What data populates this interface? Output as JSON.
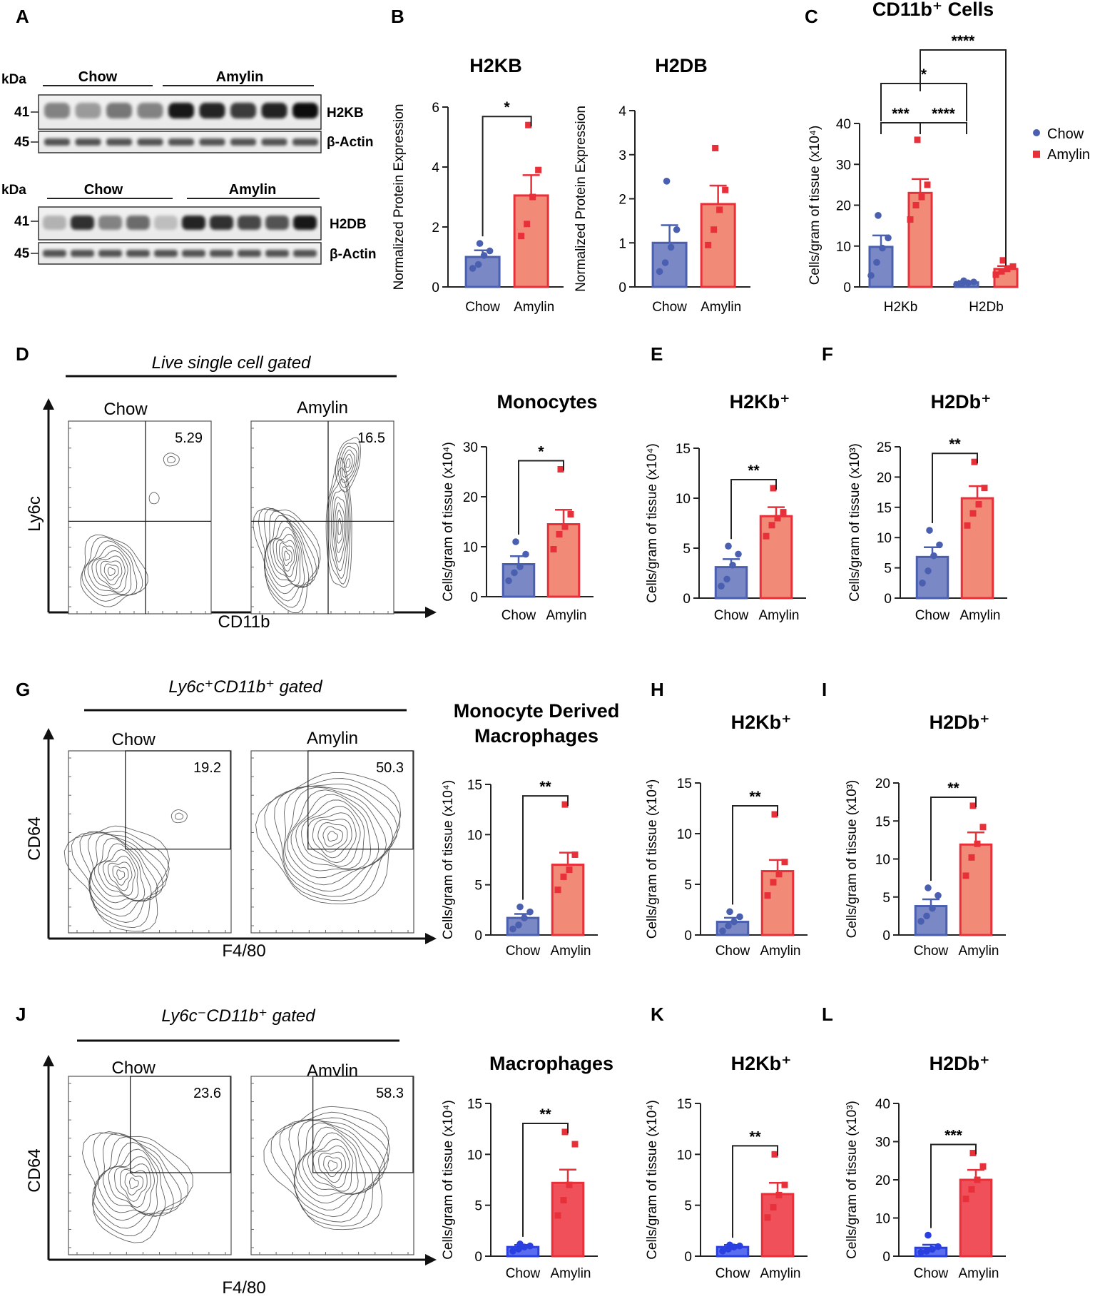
{
  "colors": {
    "chow": "#4a5fb0",
    "chow_fill": "#7b88c6",
    "amylin": "#e8303a",
    "amylin_fill": "#f28a78",
    "bright_blue": "#2a3fe0",
    "bright_red": "#f0505a"
  },
  "panelA": {
    "letter": "A",
    "kda_label": "kDa",
    "blot1": {
      "groups": [
        "Chow",
        "Amylin"
      ],
      "markers": [
        "41",
        "45"
      ],
      "bands": [
        "H2KB",
        "β-Actin"
      ]
    },
    "blot2": {
      "groups": [
        "Chow",
        "Amylin"
      ],
      "markers": [
        "41",
        "45"
      ],
      "bands": [
        "H2DB",
        "β-Actin"
      ]
    }
  },
  "panelB": {
    "letter": "B"
  },
  "panelC": {
    "letter": "C"
  },
  "legend": {
    "chow": "Chow",
    "amylin": "Amylin"
  },
  "flow": [
    {
      "id": "D",
      "letter": "D",
      "gate": "Live single cell gated",
      "xlabel": "CD11b",
      "ylabel": "Ly6c",
      "groups": [
        "Chow",
        "Amylin"
      ],
      "values": [
        "5.29",
        "16.5"
      ]
    },
    {
      "id": "G",
      "letter": "G",
      "gate": "Ly6c⁺CD11b⁺ gated",
      "xlabel": "F4/80",
      "ylabel": "CD64",
      "groups": [
        "Chow",
        "Amylin"
      ],
      "values": [
        "19.2",
        "50.3"
      ]
    },
    {
      "id": "J",
      "letter": "J",
      "gate": "Ly6c⁻CD11b⁺ gated",
      "xlabel": "F4/80",
      "ylabel": "CD64",
      "groups": [
        "Chow",
        "Amylin"
      ],
      "values": [
        "23.6",
        "58.3"
      ]
    }
  ],
  "chart_data": [
    {
      "id": "B1",
      "type": "bar",
      "title": "H2KB",
      "ylabel": "Normalized Protein Expression",
      "categories": [
        "Chow",
        "Amylin"
      ],
      "ylim": [
        0,
        6
      ],
      "yticks": [
        "0",
        "2",
        "4",
        "6"
      ],
      "values": [
        1.0,
        3.05
      ],
      "sem": [
        0.22,
        0.68
      ],
      "points": [
        [
          0.62,
          0.75,
          1.05,
          1.2,
          1.45
        ],
        [
          1.7,
          2.1,
          3.0,
          3.9,
          5.4
        ]
      ],
      "sig": "*",
      "style": "muted"
    },
    {
      "id": "B2",
      "type": "bar",
      "title": "H2DB",
      "ylabel": "Normalized Protein Expression",
      "categories": [
        "Chow",
        "Amylin"
      ],
      "ylim": [
        0,
        4
      ],
      "yticks": [
        "0",
        "1",
        "2",
        "3",
        "4"
      ],
      "values": [
        1.0,
        1.88
      ],
      "sem": [
        0.4,
        0.42
      ],
      "points": [
        [
          0.35,
          0.55,
          0.9,
          1.3,
          2.4
        ],
        [
          0.95,
          1.3,
          1.75,
          2.2,
          3.15
        ]
      ],
      "sig": "",
      "style": "muted"
    },
    {
      "id": "C",
      "type": "bar",
      "title": "CD11b⁺ Cells",
      "ylabel": "Cells/gram of tissue (x10⁴)",
      "categories": [
        "H2Kb",
        "H2Db"
      ],
      "series": [
        {
          "name": "Chow",
          "values": [
            9.8,
            1.1
          ],
          "sem": [
            2.8,
            0.3
          ],
          "points": [
            [
              2.8,
              6.0,
              9.5,
              12.0,
              17.5
            ],
            [
              0.6,
              0.9,
              1.0,
              1.2,
              1.5
            ]
          ]
        },
        {
          "name": "Amylin",
          "values": [
            23.0,
            4.4
          ],
          "sem": [
            3.4,
            0.7
          ],
          "points": [
            [
              16.5,
              20.0,
              22.0,
              25.0,
              36.0
            ],
            [
              3.0,
              3.8,
              4.4,
              5.0,
              6.5
            ]
          ]
        }
      ],
      "ylim": [
        0,
        40
      ],
      "yticks": [
        "0",
        "10",
        "20",
        "30",
        "40"
      ],
      "sig_labels": [
        "***",
        "****",
        "*",
        "****"
      ],
      "style": "muted"
    },
    {
      "id": "Dchart",
      "type": "bar",
      "title": "Monocytes",
      "ylabel": "Cells/gram of tissue (x10⁴)",
      "categories": [
        "Chow",
        "Amylin"
      ],
      "ylim": [
        0,
        30
      ],
      "yticks": [
        "0",
        "10",
        "20",
        "30"
      ],
      "values": [
        6.5,
        14.5
      ],
      "sem": [
        1.6,
        2.9
      ],
      "points": [
        [
          3.2,
          4.8,
          6.0,
          8.5,
          11.0
        ],
        [
          9.5,
          12.5,
          14.0,
          16.5,
          25.5
        ]
      ],
      "sig": "*",
      "style": "muted"
    },
    {
      "id": "E",
      "type": "bar",
      "title": "H2Kb⁺",
      "ylabel": "Cells/gram of tissue (x10⁴)",
      "categories": [
        "Chow",
        "Amylin"
      ],
      "ylim": [
        0,
        15
      ],
      "yticks": [
        "0",
        "5",
        "10",
        "15"
      ],
      "values": [
        3.1,
        8.2
      ],
      "sem": [
        0.8,
        0.9
      ],
      "points": [
        [
          1.2,
          1.9,
          3.3,
          4.4,
          5.2
        ],
        [
          6.2,
          7.3,
          8.0,
          8.6,
          11.0
        ]
      ],
      "sig": "**",
      "style": "muted"
    },
    {
      "id": "F",
      "type": "bar",
      "title": "H2Db⁺",
      "ylabel": "Cells/gram of tissue (x10³)",
      "categories": [
        "Chow",
        "Amylin"
      ],
      "ylim": [
        0,
        25
      ],
      "yticks": [
        "0",
        "5",
        "10",
        "15",
        "20",
        "25"
      ],
      "values": [
        6.8,
        16.5
      ],
      "sem": [
        1.6,
        2.0
      ],
      "points": [
        [
          2.5,
          4.5,
          7.0,
          8.8,
          11.2
        ],
        [
          12.0,
          14.0,
          15.5,
          18.2,
          22.5
        ]
      ],
      "sig": "**",
      "style": "muted"
    },
    {
      "id": "Gchart",
      "type": "bar",
      "title": "Monocyte Derived Macrophages",
      "ylabel": "Cells/gram of tissue (x10⁴)",
      "categories": [
        "Chow",
        "Amylin"
      ],
      "ylim": [
        0,
        15
      ],
      "yticks": [
        "0",
        "5",
        "10",
        "15"
      ],
      "values": [
        1.7,
        7.0
      ],
      "sem": [
        0.4,
        1.2
      ],
      "points": [
        [
          0.6,
          1.0,
          1.7,
          2.3,
          2.8
        ],
        [
          4.5,
          5.8,
          6.5,
          8.0,
          13.0
        ]
      ],
      "sig": "**",
      "style": "muted"
    },
    {
      "id": "H",
      "type": "bar",
      "title": "H2Kb⁺",
      "ylabel": "Cells/gram of tissue (x10⁴)",
      "categories": [
        "Chow",
        "Amylin"
      ],
      "ylim": [
        0,
        15
      ],
      "yticks": [
        "0",
        "5",
        "10",
        "15"
      ],
      "values": [
        1.3,
        6.3
      ],
      "sem": [
        0.4,
        1.1
      ],
      "points": [
        [
          0.4,
          0.9,
          1.3,
          1.8,
          2.3
        ],
        [
          3.9,
          5.2,
          6.0,
          7.2,
          11.9
        ]
      ],
      "sig": "**",
      "style": "muted"
    },
    {
      "id": "I",
      "type": "bar",
      "title": "H2Db⁺",
      "ylabel": "Cells/gram of tissue (x10³)",
      "categories": [
        "Chow",
        "Amylin"
      ],
      "ylim": [
        0,
        20
      ],
      "yticks": [
        "0",
        "5",
        "10",
        "15",
        "20"
      ],
      "values": [
        3.8,
        11.9
      ],
      "sem": [
        0.9,
        1.6
      ],
      "points": [
        [
          1.8,
          2.5,
          3.5,
          5.2,
          6.2
        ],
        [
          7.8,
          10.2,
          12.0,
          14.2,
          17.0
        ]
      ],
      "sig": "**",
      "style": "muted"
    },
    {
      "id": "Jchart",
      "type": "bar",
      "title": "Macrophages",
      "ylabel": "Cells/gram of tissue (x10⁴)",
      "categories": [
        "Chow",
        "Amylin"
      ],
      "ylim": [
        0,
        15
      ],
      "yticks": [
        "0",
        "5",
        "10",
        "15"
      ],
      "values": [
        0.9,
        7.2
      ],
      "sem": [
        0.2,
        1.3
      ],
      "points": [
        [
          0.5,
          0.7,
          0.9,
          1.0,
          1.2
        ],
        [
          4.0,
          5.5,
          7.0,
          11.0,
          12.2
        ]
      ],
      "sig": "**",
      "style": "bright"
    },
    {
      "id": "K",
      "type": "bar",
      "title": "H2Kb⁺",
      "ylabel": "Cells/gram of tissue (x10⁴)",
      "categories": [
        "Chow",
        "Amylin"
      ],
      "ylim": [
        0,
        15
      ],
      "yticks": [
        "0",
        "5",
        "10",
        "15"
      ],
      "values": [
        0.9,
        6.1
      ],
      "sem": [
        0.2,
        1.1
      ],
      "points": [
        [
          0.5,
          0.7,
          0.9,
          1.0,
          1.1
        ],
        [
          3.8,
          4.8,
          6.0,
          7.0,
          10.0
        ]
      ],
      "sig": "**",
      "style": "bright"
    },
    {
      "id": "L",
      "type": "bar",
      "title": "H2Db⁺",
      "ylabel": "Cells/gram of tissue (x10³)",
      "categories": [
        "Chow",
        "Amylin"
      ],
      "ylim": [
        0,
        40
      ],
      "yticks": [
        "0",
        "10",
        "20",
        "30",
        "40"
      ],
      "values": [
        2.2,
        20.0
      ],
      "sem": [
        0.8,
        2.6
      ],
      "points": [
        [
          1.0,
          1.3,
          1.8,
          2.5,
          5.5
        ],
        [
          15.0,
          17.5,
          20.0,
          23.5,
          27.0
        ]
      ],
      "sig": "***",
      "style": "bright"
    }
  ]
}
